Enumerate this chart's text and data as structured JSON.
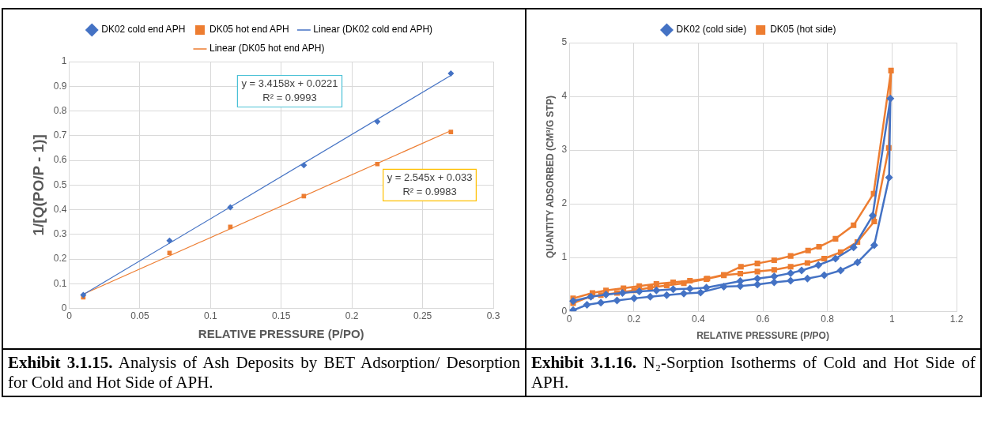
{
  "chart_data": [
    {
      "type": "scatter",
      "title": "Exhibit 3.1.15. Analysis of Ash Deposits by BET Adsorption/ Desorption for Cold and Hot Side of APH.",
      "xlabel": "RELATIVE PRESSURE (P/PO)",
      "ylabel": "1/[Q(PO/P - 1)]",
      "x": [
        0.01,
        0.071,
        0.114,
        0.166,
        0.218,
        0.27
      ],
      "series": [
        {
          "name": "DK02 cold end APH",
          "color": "#4472c4",
          "marker": "diamond",
          "values": [
            0.055,
            0.275,
            0.41,
            0.58,
            0.757,
            0.952
          ]
        },
        {
          "name": "DK05 hot end APH",
          "color": "#ed7d31",
          "marker": "square",
          "values": [
            0.045,
            0.225,
            0.33,
            0.455,
            0.585,
            0.715
          ]
        },
        {
          "name": "Linear (DK02 cold end APH)",
          "type": "line",
          "color": "#4472c4",
          "marker": "none",
          "x": [
            0.01,
            0.27
          ],
          "values": [
            0.056,
            0.944
          ]
        },
        {
          "name": "Linear (DK05 hot end APH)",
          "type": "line",
          "color": "#ed7d31",
          "marker": "none",
          "x": [
            0.01,
            0.27
          ],
          "values": [
            0.058,
            0.72
          ]
        }
      ],
      "annotations": [
        "y = 3.4158x + 0.0221",
        "R² = 0.9993",
        "y = 2.545x + 0.033",
        "R² = 0.9983"
      ],
      "xlim": [
        0,
        0.3
      ],
      "xticks": [
        0,
        0.05,
        0.1,
        0.15,
        0.2,
        0.25,
        0.3
      ],
      "ylim": [
        0,
        1
      ],
      "yticks": [
        0,
        0.1,
        0.2,
        0.3,
        0.4,
        0.5,
        0.6,
        0.7,
        0.8,
        0.9,
        1
      ],
      "grid": true,
      "legend": "top"
    },
    {
      "type": "line",
      "title": "Exhibit 3.1.16. N₂-Sorption Isotherms of Cold and Hot Side of APH.",
      "xlabel": "RELATIVE PRESSURE (P/PO)",
      "ylabel": "QUANTITY ADSORBED (CM³/G STP)",
      "series": [
        {
          "name": "DK02 (cold side)",
          "color": "#4472c4",
          "marker": "diamond",
          "x": [
            0.012,
            0.055,
            0.098,
            0.148,
            0.201,
            0.251,
            0.302,
            0.355,
            0.407,
            0.479,
            0.53,
            0.583,
            0.635,
            0.686,
            0.738,
            0.79,
            0.841,
            0.893,
            0.945,
            0.991,
            0.995,
            0.94,
            0.881,
            0.825,
            0.772,
            0.72,
            0.686,
            0.635,
            0.583,
            0.53,
            0.425,
            0.374,
            0.322,
            0.27,
            0.217,
            0.165,
            0.114,
            0.067,
            0.012
          ],
          "values": [
            0.02,
            0.12,
            0.16,
            0.2,
            0.24,
            0.27,
            0.3,
            0.33,
            0.35,
            0.46,
            0.47,
            0.5,
            0.54,
            0.57,
            0.61,
            0.67,
            0.76,
            0.91,
            1.23,
            2.49,
            3.96,
            1.78,
            1.19,
            0.98,
            0.86,
            0.76,
            0.71,
            0.65,
            0.61,
            0.56,
            0.44,
            0.42,
            0.41,
            0.39,
            0.37,
            0.34,
            0.31,
            0.27,
            0.19
          ]
        },
        {
          "name": "DK05 (hot side)",
          "color": "#ed7d31",
          "marker": "square",
          "x": [
            0.012,
            0.067,
            0.098,
            0.148,
            0.201,
            0.251,
            0.302,
            0.355,
            0.425,
            0.479,
            0.53,
            0.583,
            0.635,
            0.686,
            0.738,
            0.79,
            0.841,
            0.893,
            0.945,
            0.99,
            0.997,
            0.943,
            0.881,
            0.825,
            0.774,
            0.74,
            0.686,
            0.635,
            0.583,
            0.532,
            0.479,
            0.428,
            0.374,
            0.322,
            0.27,
            0.217,
            0.168,
            0.114,
            0.072,
            0.012
          ],
          "values": [
            0.15,
            0.28,
            0.3,
            0.34,
            0.39,
            0.44,
            0.48,
            0.52,
            0.6,
            0.67,
            0.7,
            0.74,
            0.77,
            0.83,
            0.9,
            0.98,
            1.1,
            1.29,
            1.67,
            3.04,
            4.48,
            2.19,
            1.6,
            1.35,
            1.2,
            1.13,
            1.03,
            0.95,
            0.89,
            0.83,
            0.68,
            0.61,
            0.57,
            0.54,
            0.51,
            0.47,
            0.43,
            0.39,
            0.34,
            0.24
          ]
        }
      ],
      "xlim": [
        0,
        1.2
      ],
      "xticks": [
        0,
        0.2,
        0.4,
        0.6,
        0.8,
        1,
        1.2
      ],
      "ylim": [
        0,
        5
      ],
      "yticks": [
        0,
        1,
        2,
        3,
        4,
        5
      ],
      "grid": true,
      "legend": "top"
    }
  ]
}
